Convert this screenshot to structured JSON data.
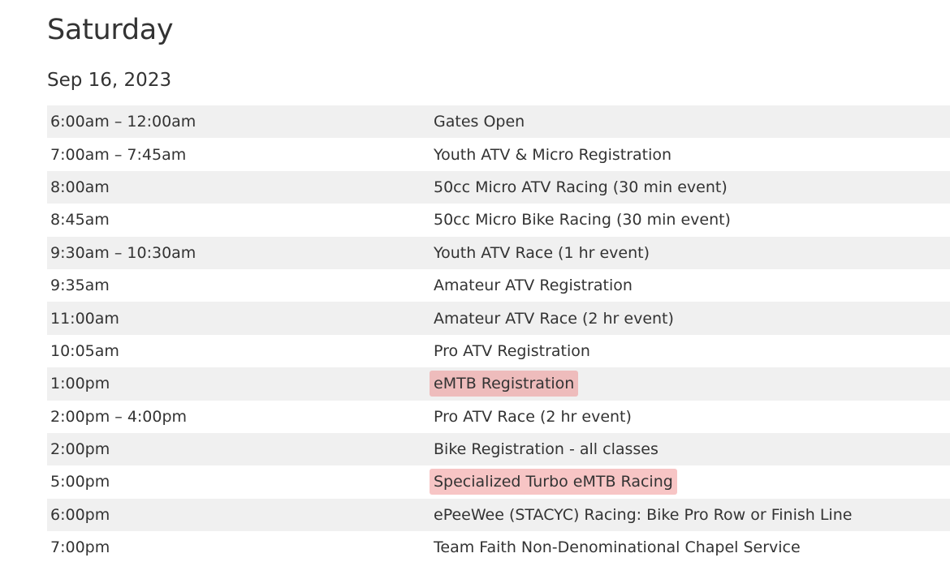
{
  "title": "Saturday",
  "date": "Sep 16, 2023",
  "highlight_color": "#f4c2c2",
  "schedule": [
    {
      "time": "6:00am – 12:00am",
      "event": "Gates Open",
      "highlighted": false
    },
    {
      "time": "7:00am – 7:45am",
      "event": "Youth ATV & Micro Registration",
      "highlighted": false
    },
    {
      "time": "8:00am",
      "event": "50cc Micro ATV Racing (30 min event)",
      "highlighted": false
    },
    {
      "time": "8:45am",
      "event": "50cc Micro Bike Racing (30 min event)",
      "highlighted": false
    },
    {
      "time": "9:30am – 10:30am",
      "event": "Youth ATV Race (1 hr event)",
      "highlighted": false
    },
    {
      "time": "9:35am",
      "event": "Amateur ATV Registration",
      "highlighted": false
    },
    {
      "time": "11:00am",
      "event": "Amateur ATV Race (2 hr event)",
      "highlighted": false
    },
    {
      "time": "10:05am",
      "event": "Pro ATV Registration",
      "highlighted": false
    },
    {
      "time": "1:00pm",
      "event": "eMTB Registration",
      "highlighted": true
    },
    {
      "time": "2:00pm – 4:00pm",
      "event": "Pro ATV Race (2 hr event)",
      "highlighted": false
    },
    {
      "time": "2:00pm",
      "event": "Bike Registration - all classes",
      "highlighted": false
    },
    {
      "time": "5:00pm",
      "event": "Specialized Turbo eMTB Racing",
      "highlighted": true
    },
    {
      "time": "6:00pm",
      "event": "ePeeWee (STACYC) Racing: Bike Pro Row or Finish Line",
      "highlighted": false
    },
    {
      "time": "7:00pm",
      "event": "Team Faith Non-Denominational Chapel Service",
      "highlighted": false
    }
  ]
}
